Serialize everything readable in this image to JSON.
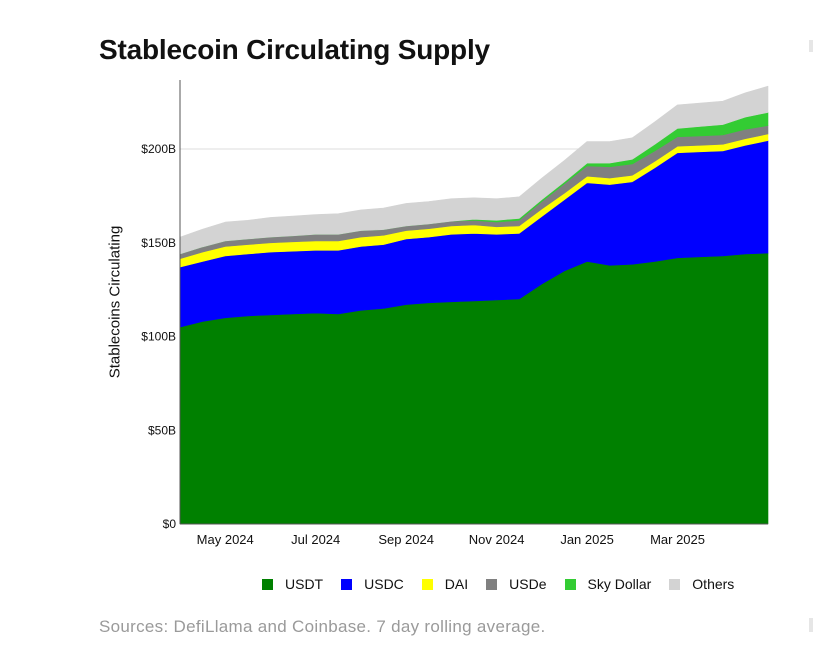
{
  "chart_data": {
    "type": "area",
    "stacked": true,
    "title": "Stablecoin Circulating Supply",
    "xlabel": "",
    "ylabel": "Stablecoins Circulating",
    "ylim": [
      0,
      240
    ],
    "y_unit": "billions USD",
    "yticks": [
      {
        "value": 0,
        "label": "$0"
      },
      {
        "value": 50,
        "label": "$50B"
      },
      {
        "value": 100,
        "label": "$100B"
      },
      {
        "value": 150,
        "label": "$150B"
      },
      {
        "value": 200,
        "label": "$200B"
      }
    ],
    "xlim": [
      0,
      13
    ],
    "xticks": [
      {
        "value": 1.0,
        "label": "May 2024"
      },
      {
        "value": 3.0,
        "label": "Jul 2024"
      },
      {
        "value": 5.0,
        "label": "Sep 2024"
      },
      {
        "value": 7.0,
        "label": "Nov 2024"
      },
      {
        "value": 9.0,
        "label": "Jan 2025"
      },
      {
        "value": 11.0,
        "label": "Mar 2025"
      }
    ],
    "x_unit": "months since April 2024",
    "x": [
      0,
      0.5,
      1.0,
      1.5,
      2.0,
      2.5,
      3.0,
      3.5,
      4.0,
      4.5,
      5.0,
      5.5,
      6.0,
      6.5,
      7.0,
      7.5,
      8.0,
      8.5,
      9.0,
      9.5,
      10.0,
      10.5,
      11.0,
      11.5,
      12.0,
      12.5,
      13.0
    ],
    "series": [
      {
        "name": "USDT",
        "color": "#008000",
        "values": [
          105,
          108,
          110,
          111,
          111.5,
          112,
          112.5,
          112,
          114,
          115,
          117,
          118,
          118.5,
          119,
          119.5,
          120,
          128,
          135,
          140,
          138,
          138.5,
          140,
          142,
          142.5,
          143,
          144,
          144.5
        ]
      },
      {
        "name": "USDC",
        "color": "#0000ff",
        "values": [
          32,
          32,
          33,
          33,
          33.5,
          33.5,
          33.5,
          34,
          34,
          34,
          35,
          35,
          36,
          36,
          35,
          35,
          36,
          38,
          42,
          43,
          44,
          50,
          56,
          56,
          56,
          58,
          60
        ]
      },
      {
        "name": "DAI",
        "color": "#ffff00",
        "values": [
          4.5,
          5,
          5,
          5,
          5,
          5,
          5,
          5,
          5,
          5,
          4.5,
          4.5,
          4.5,
          4.5,
          4,
          4,
          4,
          3.5,
          3.5,
          3.5,
          3.5,
          3.5,
          3.5,
          3.5,
          3.5,
          3.5,
          3.5
        ]
      },
      {
        "name": "USDe",
        "color": "#808080",
        "values": [
          2.5,
          2.8,
          3,
          3,
          3,
          3.2,
          3.5,
          3.5,
          3.5,
          3,
          2.5,
          2.5,
          2.5,
          2.5,
          2.5,
          3,
          4,
          5,
          5.5,
          6,
          6,
          5.5,
          5,
          5,
          5,
          5,
          4.5
        ]
      },
      {
        "name": "Sky Dollar",
        "color": "#33cc33",
        "values": [
          0,
          0,
          0,
          0,
          0,
          0,
          0,
          0,
          0,
          0,
          0,
          0,
          0,
          0.5,
          1,
          1,
          1,
          1,
          1.5,
          2,
          2.5,
          3.5,
          4.5,
          5,
          5.5,
          6.5,
          7
        ]
      },
      {
        "name": "Others",
        "color": "#d3d3d3",
        "values": [
          9,
          9.5,
          10,
          10,
          10.5,
          10.5,
          10.5,
          11,
          11,
          11.5,
          12,
          12,
          12,
          11.5,
          11.5,
          11.5,
          11.5,
          11.5,
          11.5,
          11.5,
          11.5,
          12,
          12.5,
          12.5,
          12.5,
          13,
          14
        ]
      }
    ]
  },
  "legend": [
    {
      "label": "USDT",
      "color": "#008000"
    },
    {
      "label": "USDC",
      "color": "#0000ff"
    },
    {
      "label": "DAI",
      "color": "#ffff00"
    },
    {
      "label": "USDe",
      "color": "#808080"
    },
    {
      "label": "Sky Dollar",
      "color": "#33cc33"
    },
    {
      "label": "Others",
      "color": "#d3d3d3"
    }
  ],
  "source_note": "Sources: DefiLlama and Coinbase. 7 day rolling average."
}
